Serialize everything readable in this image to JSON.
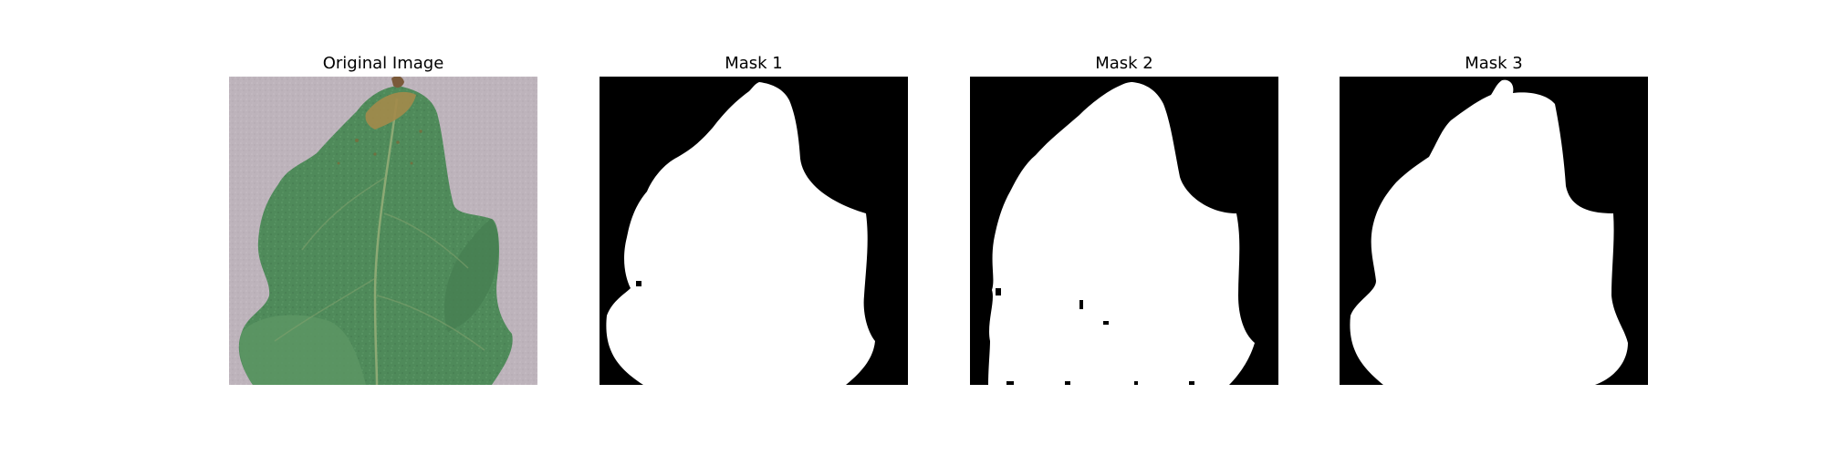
{
  "figure": {
    "panels": [
      {
        "title": "Original Image",
        "kind": "photo"
      },
      {
        "title": "Mask 1",
        "kind": "mask"
      },
      {
        "title": "Mask 2",
        "kind": "mask"
      },
      {
        "title": "Mask 3",
        "kind": "mask"
      }
    ],
    "colors": {
      "background": "#ffffff",
      "mask_background": "#000000",
      "mask_foreground": "#ffffff",
      "photo_backdrop": "#bdb3bb",
      "leaf_green": "#4f8a5a",
      "leaf_shadow": "#3e6f49",
      "leaf_vein": "#9bb07a",
      "leaf_spot": "#a38a4a",
      "stem": "#7a5a3a"
    }
  }
}
